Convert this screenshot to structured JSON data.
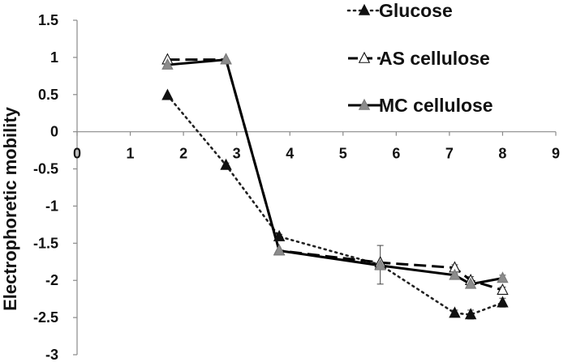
{
  "chart_data": {
    "type": "line",
    "title": "",
    "xlabel": "",
    "ylabel": "Electrophoretic mobility",
    "xlim": [
      0,
      9
    ],
    "ylim": [
      -3,
      1.5
    ],
    "x_ticks": [
      "0",
      "1",
      "2",
      "3",
      "4",
      "5",
      "6",
      "7",
      "8",
      "9"
    ],
    "y_ticks": [
      "1.5",
      "1",
      "0.5",
      "0",
      "-0.5",
      "-1",
      "-1.5",
      "-2",
      "-2.5",
      "-3"
    ],
    "grid": false,
    "legend_position": "top-right",
    "series": [
      {
        "name": "Glucose",
        "line_style": "dotted",
        "marker": "filled-triangle",
        "color": "#222222",
        "x": [
          1.7,
          2.8,
          3.8,
          5.7,
          7.1,
          7.4,
          8.0
        ],
        "y": [
          0.49,
          -0.45,
          -1.41,
          -1.79,
          -2.44,
          -2.46,
          -2.3
        ],
        "error": [
          0,
          0.03,
          0.03,
          0.26,
          0.04,
          0.06,
          0.06
        ]
      },
      {
        "name": "AS cellulose",
        "line_style": "dashed",
        "marker": "open-triangle",
        "color": "#000000",
        "x": [
          1.7,
          2.8,
          3.8,
          5.7,
          7.1,
          7.4,
          8.0
        ],
        "y": [
          0.97,
          0.97,
          -1.6,
          -1.76,
          -1.83,
          -2.0,
          -2.13
        ],
        "error": [
          0,
          0,
          0,
          0,
          0.04,
          0.05,
          0.04
        ]
      },
      {
        "name": "MC cellulose",
        "line_style": "solid",
        "marker": "gray-triangle",
        "color": "#000000",
        "x": [
          1.7,
          2.8,
          3.8,
          5.7,
          7.1,
          7.4,
          8.0
        ],
        "y": [
          0.9,
          0.97,
          -1.6,
          -1.8,
          -1.93,
          -2.05,
          -1.97
        ],
        "error": [
          0,
          0,
          0,
          0,
          0.02,
          0.05,
          0.04
        ]
      }
    ]
  }
}
